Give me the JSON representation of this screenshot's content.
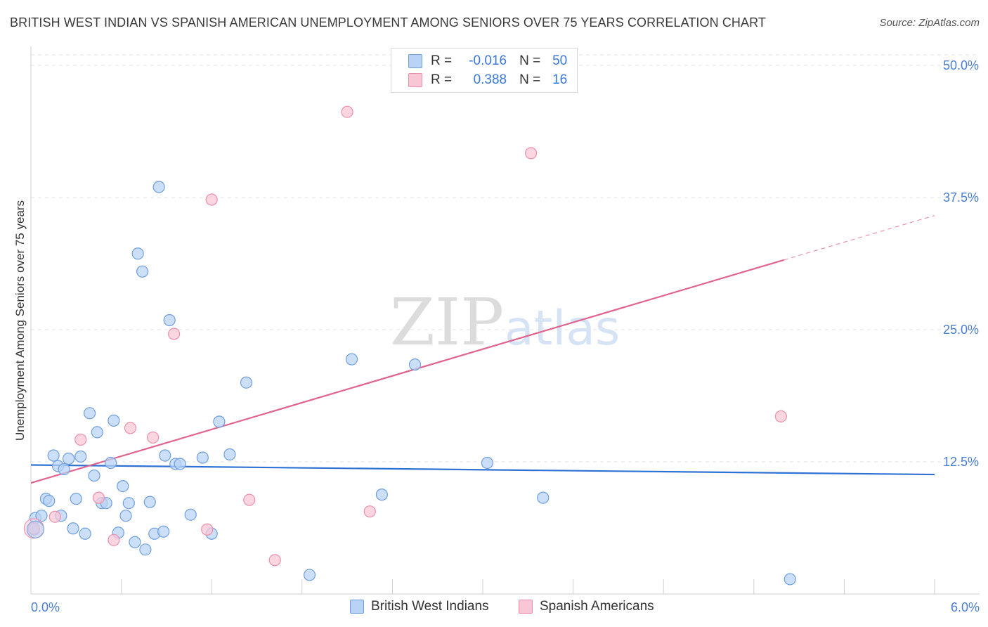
{
  "title": "BRITISH WEST INDIAN VS SPANISH AMERICAN UNEMPLOYMENT AMONG SENIORS OVER 75 YEARS CORRELATION CHART",
  "source": "Source: ZipAtlas.com",
  "watermark": {
    "zip": "ZIP",
    "atlas": "atlas"
  },
  "legend": {
    "r_label": "R =",
    "n_label": "N =",
    "rows": [
      {
        "r": "-0.016",
        "n": "50",
        "fill": "#b8d3f5",
        "stroke": "#6f9fe0"
      },
      {
        "r": "0.388",
        "n": "16",
        "fill": "#f9c6d6",
        "stroke": "#ec8fac"
      }
    ]
  },
  "bottom_legend": [
    {
      "label": "British West Indians"
    },
    {
      "label": "Spanish Americans"
    }
  ],
  "chart_data": {
    "type": "scatter",
    "title": "BRITISH WEST INDIAN VS SPANISH AMERICAN UNEMPLOYMENT AMONG SENIORS OVER 75 YEARS CORRELATION CHART",
    "xlabel": "",
    "ylabel": "Unemployment Among Seniors over 75 years",
    "xlim": [
      0.0,
      6.0
    ],
    "ylim": [
      0.0,
      51.0
    ],
    "x_tick_labels": [
      "0.0%",
      "6.0%"
    ],
    "y_ticks": [
      12.5,
      25.0,
      37.5,
      50.0
    ],
    "y_tick_labels": [
      "12.5%",
      "25.0%",
      "37.5%",
      "50.0%"
    ],
    "grid": true,
    "series": [
      {
        "name": "British West Indians",
        "color": "#6f9fe0",
        "fill": "#b8d3f5",
        "trend": {
          "x0": 0.0,
          "y0": 12.2,
          "x1": 6.0,
          "y1": 11.3,
          "color": "#2f72d4"
        },
        "points": [
          [
            0.03,
            7.2
          ],
          [
            0.07,
            7.4
          ],
          [
            0.1,
            9.0
          ],
          [
            0.12,
            8.8
          ],
          [
            0.15,
            13.1
          ],
          [
            0.18,
            12.1
          ],
          [
            0.2,
            7.4
          ],
          [
            0.22,
            11.8
          ],
          [
            0.25,
            12.8
          ],
          [
            0.28,
            6.2
          ],
          [
            0.3,
            9.0
          ],
          [
            0.33,
            13.0
          ],
          [
            0.36,
            5.7
          ],
          [
            0.39,
            17.1
          ],
          [
            0.42,
            11.2
          ],
          [
            0.44,
            15.3
          ],
          [
            0.47,
            8.6
          ],
          [
            0.5,
            8.6
          ],
          [
            0.53,
            12.4
          ],
          [
            0.55,
            16.4
          ],
          [
            0.58,
            5.8
          ],
          [
            0.61,
            10.2
          ],
          [
            0.63,
            7.4
          ],
          [
            0.65,
            8.6
          ],
          [
            0.69,
            4.9
          ],
          [
            0.71,
            32.2
          ],
          [
            0.74,
            30.5
          ],
          [
            0.76,
            4.2
          ],
          [
            0.79,
            8.7
          ],
          [
            0.82,
            5.7
          ],
          [
            0.85,
            38.5
          ],
          [
            0.88,
            5.9
          ],
          [
            0.89,
            13.1
          ],
          [
            0.92,
            25.9
          ],
          [
            0.96,
            12.3
          ],
          [
            0.99,
            12.3
          ],
          [
            1.06,
            7.5
          ],
          [
            1.14,
            12.9
          ],
          [
            1.2,
            5.7
          ],
          [
            1.25,
            16.3
          ],
          [
            1.32,
            13.2
          ],
          [
            1.43,
            20.0
          ],
          [
            1.85,
            1.8
          ],
          [
            2.13,
            22.2
          ],
          [
            2.33,
            9.4
          ],
          [
            2.55,
            21.7
          ],
          [
            3.03,
            12.4
          ],
          [
            3.4,
            9.1
          ],
          [
            5.04,
            1.4
          ],
          [
            0.02,
            6.1
          ]
        ]
      },
      {
        "name": "Spanish Americans",
        "color": "#ec8fac",
        "fill": "#f9c6d6",
        "trend": {
          "x0": 0.0,
          "y0": 10.5,
          "x1": 5.0,
          "y1": 31.6,
          "color": "#e0648e",
          "dash_to_x": 6.0,
          "dash_to_y": 35.8
        },
        "points": [
          [
            0.02,
            6.2
          ],
          [
            0.16,
            7.3
          ],
          [
            0.33,
            14.6
          ],
          [
            0.45,
            9.1
          ],
          [
            0.55,
            5.1
          ],
          [
            0.66,
            15.7
          ],
          [
            0.81,
            14.8
          ],
          [
            0.95,
            24.6
          ],
          [
            1.17,
            6.1
          ],
          [
            1.2,
            37.3
          ],
          [
            1.45,
            8.9
          ],
          [
            1.62,
            3.2
          ],
          [
            2.1,
            45.6
          ],
          [
            2.25,
            7.8
          ],
          [
            3.32,
            41.7
          ],
          [
            4.98,
            16.8
          ]
        ]
      }
    ]
  }
}
